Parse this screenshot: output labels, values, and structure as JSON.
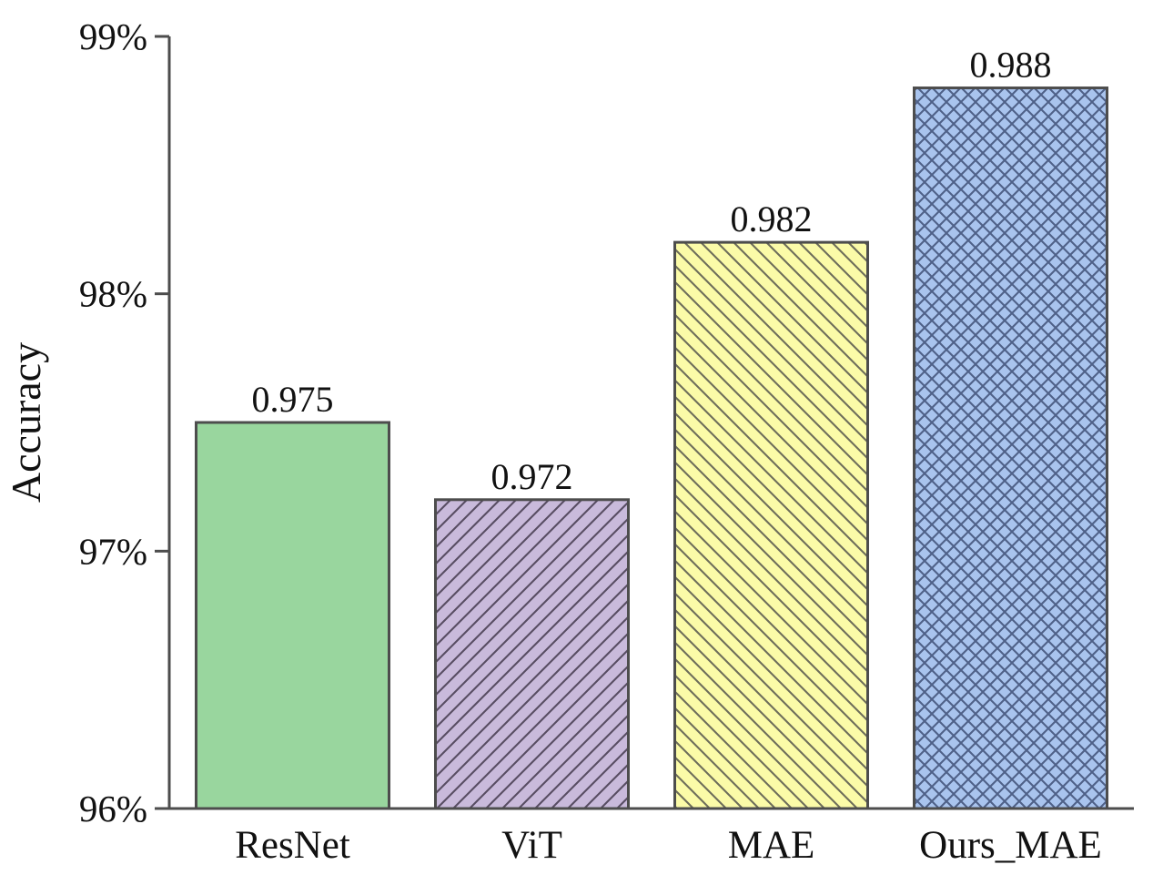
{
  "chart_data": {
    "type": "bar",
    "title": "",
    "xlabel": "",
    "ylabel": "Accuracy",
    "categories": [
      "ResNet",
      "ViT",
      "MAE",
      "Ours_MAE"
    ],
    "values": [
      0.975,
      0.972,
      0.982,
      0.988
    ],
    "value_labels": [
      "0.975",
      "0.972",
      "0.982",
      "0.988"
    ],
    "ylim": [
      0.96,
      0.99
    ],
    "yticks": [
      {
        "value": 0.96,
        "label": "96%"
      },
      {
        "value": 0.97,
        "label": "97%"
      },
      {
        "value": 0.98,
        "label": "98%"
      },
      {
        "value": 0.99,
        "label": "99%"
      }
    ],
    "grid": false,
    "legend": false,
    "bar_styles": [
      {
        "fill": "#99d69e",
        "hatch": "none",
        "hatch_color": "#4d4d4d"
      },
      {
        "fill": "#c9badb",
        "hatch": "forward-diagonal",
        "hatch_color": "#584d63"
      },
      {
        "fill": "#fbfba8",
        "hatch": "backward-diagonal",
        "hatch_color": "#6e6e5a"
      },
      {
        "fill": "#a9c4ee",
        "hatch": "cross-diagonal",
        "hatch_color": "#4f6188"
      }
    ],
    "edge_color": "#4d4d4d",
    "axis_color": "#4d4d4d",
    "text_color": "#111111"
  }
}
